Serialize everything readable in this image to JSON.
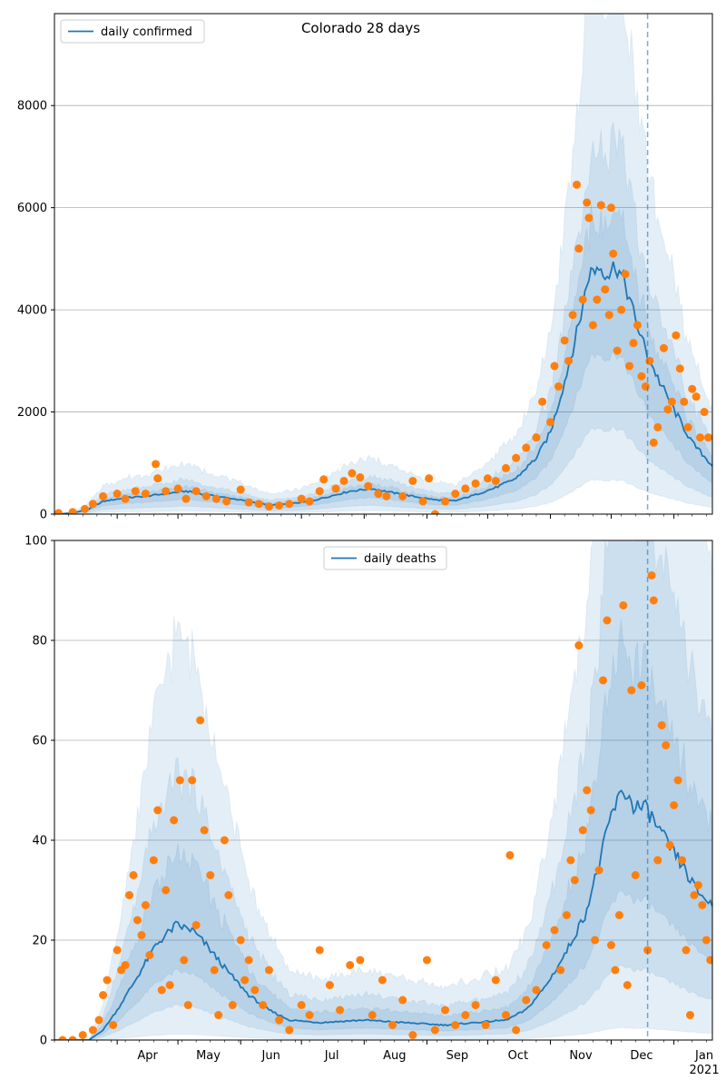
{
  "chart_data": [
    {
      "type": "line",
      "title": "Colorado 28 days",
      "legend": {
        "label": "daily confirmed",
        "placement": "top-left"
      },
      "x_start": "2020-03-01",
      "x_end": "2021-01-20",
      "ylim": [
        0,
        9800
      ],
      "yticks": [
        0,
        2000,
        4000,
        6000,
        8000
      ],
      "grid_y": true,
      "forecast_date": "2020-12-19",
      "median_line": [
        [
          "2020-03-01",
          0
        ],
        [
          "2020-03-10",
          20
        ],
        [
          "2020-03-18",
          100
        ],
        [
          "2020-03-25",
          250
        ],
        [
          "2020-04-05",
          320
        ],
        [
          "2020-04-15",
          350
        ],
        [
          "2020-04-25",
          400
        ],
        [
          "2020-05-05",
          450
        ],
        [
          "2020-05-15",
          380
        ],
        [
          "2020-05-25",
          320
        ],
        [
          "2020-06-05",
          250
        ],
        [
          "2020-06-15",
          180
        ],
        [
          "2020-06-25",
          200
        ],
        [
          "2020-07-05",
          250
        ],
        [
          "2020-07-15",
          350
        ],
        [
          "2020-07-25",
          450
        ],
        [
          "2020-08-05",
          500
        ],
        [
          "2020-08-15",
          420
        ],
        [
          "2020-08-25",
          350
        ],
        [
          "2020-09-05",
          280
        ],
        [
          "2020-09-15",
          260
        ],
        [
          "2020-09-25",
          380
        ],
        [
          "2020-10-05",
          520
        ],
        [
          "2020-10-15",
          700
        ],
        [
          "2020-10-25",
          1100
        ],
        [
          "2020-11-01",
          1600
        ],
        [
          "2020-11-08",
          2600
        ],
        [
          "2020-11-15",
          3700
        ],
        [
          "2020-11-20",
          4700
        ],
        [
          "2020-11-25",
          4850
        ],
        [
          "2020-11-30",
          4700
        ],
        [
          "2020-12-03",
          4900
        ],
        [
          "2020-12-08",
          4500
        ],
        [
          "2020-12-13",
          3800
        ],
        [
          "2020-12-19",
          3100
        ],
        [
          "2020-12-26",
          2500
        ],
        [
          "2021-01-03",
          1900
        ],
        [
          "2021-01-10",
          1400
        ],
        [
          "2021-01-20",
          950
        ]
      ],
      "bands": [
        {
          "name": "band-outer",
          "opacity": 0.12,
          "lower": 0.14,
          "upper": 2.2
        },
        {
          "name": "band-mid",
          "opacity": 0.12,
          "lower": 0.35,
          "upper": 1.5
        },
        {
          "name": "band-inner",
          "opacity": 0.12,
          "lower": 0.65,
          "upper": 1.2
        }
      ],
      "observed": [
        [
          "2020-03-03",
          20
        ],
        [
          "2020-03-10",
          40
        ],
        [
          "2020-03-16",
          100
        ],
        [
          "2020-03-20",
          200
        ],
        [
          "2020-03-25",
          350
        ],
        [
          "2020-04-01",
          400
        ],
        [
          "2020-04-05",
          300
        ],
        [
          "2020-04-10",
          450
        ],
        [
          "2020-04-15",
          400
        ],
        [
          "2020-04-20",
          980
        ],
        [
          "2020-04-21",
          700
        ],
        [
          "2020-04-25",
          450
        ],
        [
          "2020-05-01",
          500
        ],
        [
          "2020-05-05",
          300
        ],
        [
          "2020-05-10",
          450
        ],
        [
          "2020-05-15",
          350
        ],
        [
          "2020-05-20",
          300
        ],
        [
          "2020-05-25",
          250
        ],
        [
          "2020-06-01",
          480
        ],
        [
          "2020-06-05",
          230
        ],
        [
          "2020-06-10",
          200
        ],
        [
          "2020-06-15",
          150
        ],
        [
          "2020-06-20",
          170
        ],
        [
          "2020-06-25",
          200
        ],
        [
          "2020-07-01",
          300
        ],
        [
          "2020-07-05",
          250
        ],
        [
          "2020-07-10",
          450
        ],
        [
          "2020-07-12",
          680
        ],
        [
          "2020-07-18",
          500
        ],
        [
          "2020-07-22",
          650
        ],
        [
          "2020-07-26",
          800
        ],
        [
          "2020-07-30",
          720
        ],
        [
          "2020-08-03",
          550
        ],
        [
          "2020-08-08",
          400
        ],
        [
          "2020-08-12",
          350
        ],
        [
          "2020-08-20",
          350
        ],
        [
          "2020-08-25",
          650
        ],
        [
          "2020-08-30",
          250
        ],
        [
          "2020-09-02",
          700
        ],
        [
          "2020-09-05",
          0
        ],
        [
          "2020-09-10",
          250
        ],
        [
          "2020-09-15",
          400
        ],
        [
          "2020-09-20",
          500
        ],
        [
          "2020-09-25",
          600
        ],
        [
          "2020-10-01",
          700
        ],
        [
          "2020-10-05",
          650
        ],
        [
          "2020-10-10",
          900
        ],
        [
          "2020-10-15",
          1100
        ],
        [
          "2020-10-20",
          1300
        ],
        [
          "2020-10-25",
          1500
        ],
        [
          "2020-10-28",
          2200
        ],
        [
          "2020-11-01",
          1800
        ],
        [
          "2020-11-03",
          2900
        ],
        [
          "2020-11-05",
          2500
        ],
        [
          "2020-11-08",
          3400
        ],
        [
          "2020-11-10",
          3000
        ],
        [
          "2020-11-12",
          3900
        ],
        [
          "2020-11-14",
          6450
        ],
        [
          "2020-11-15",
          5200
        ],
        [
          "2020-11-17",
          4200
        ],
        [
          "2020-11-19",
          6100
        ],
        [
          "2020-11-20",
          5800
        ],
        [
          "2020-11-22",
          3700
        ],
        [
          "2020-11-24",
          4200
        ],
        [
          "2020-11-26",
          6050
        ],
        [
          "2020-11-28",
          4400
        ],
        [
          "2020-11-30",
          3900
        ],
        [
          "2020-12-01",
          6000
        ],
        [
          "2020-12-02",
          5100
        ],
        [
          "2020-12-04",
          3200
        ],
        [
          "2020-12-06",
          4000
        ],
        [
          "2020-12-08",
          4700
        ],
        [
          "2020-12-10",
          2900
        ],
        [
          "2020-12-12",
          3350
        ],
        [
          "2020-12-14",
          3700
        ],
        [
          "2020-12-16",
          2700
        ],
        [
          "2020-12-18",
          2500
        ],
        [
          "2020-12-20",
          3000
        ],
        [
          "2020-12-22",
          1400
        ],
        [
          "2020-12-24",
          1700
        ],
        [
          "2020-12-27",
          3250
        ],
        [
          "2020-12-29",
          2050
        ],
        [
          "2020-12-31",
          2200
        ],
        [
          "2021-01-02",
          3500
        ],
        [
          "2021-01-04",
          2850
        ],
        [
          "2021-01-06",
          2200
        ],
        [
          "2021-01-08",
          1700
        ],
        [
          "2021-01-10",
          2450
        ],
        [
          "2021-01-12",
          2300
        ],
        [
          "2021-01-14",
          1500
        ],
        [
          "2021-01-16",
          2000
        ],
        [
          "2021-01-18",
          1500
        ]
      ]
    },
    {
      "type": "line",
      "title": "",
      "legend": {
        "label": "daily deaths",
        "placement": "top-center"
      },
      "x_start": "2020-03-01",
      "x_end": "2021-01-20",
      "ylim": [
        0,
        100
      ],
      "yticks": [
        0,
        20,
        40,
        60,
        80,
        100
      ],
      "grid_y": true,
      "forecast_date": "2020-12-19",
      "xticks": [
        {
          "date": "2020-04-01",
          "label": "Apr"
        },
        {
          "date": "2020-05-01",
          "label": "May"
        },
        {
          "date": "2020-06-01",
          "label": "Jun"
        },
        {
          "date": "2020-07-01",
          "label": "Jul"
        },
        {
          "date": "2020-08-01",
          "label": "Aug"
        },
        {
          "date": "2020-09-01",
          "label": "Sep"
        },
        {
          "date": "2020-10-01",
          "label": "Oct"
        },
        {
          "date": "2020-11-01",
          "label": "Nov"
        },
        {
          "date": "2020-12-01",
          "label": "Dec"
        },
        {
          "date": "2021-01-01",
          "label": "Jan"
        }
      ],
      "year_label": "2021",
      "median_line": [
        [
          "2020-03-01",
          0
        ],
        [
          "2020-03-18",
          0
        ],
        [
          "2020-03-25",
          2
        ],
        [
          "2020-04-01",
          6
        ],
        [
          "2020-04-10",
          12
        ],
        [
          "2020-04-20",
          19
        ],
        [
          "2020-04-30",
          23
        ],
        [
          "2020-05-08",
          22
        ],
        [
          "2020-05-15",
          19
        ],
        [
          "2020-05-25",
          14
        ],
        [
          "2020-06-05",
          9
        ],
        [
          "2020-06-15",
          6
        ],
        [
          "2020-06-25",
          4
        ],
        [
          "2020-07-10",
          3.5
        ],
        [
          "2020-08-01",
          4
        ],
        [
          "2020-08-20",
          3.5
        ],
        [
          "2020-09-10",
          3
        ],
        [
          "2020-09-25",
          3.5
        ],
        [
          "2020-10-10",
          4
        ],
        [
          "2020-10-20",
          6
        ],
        [
          "2020-10-30",
          11
        ],
        [
          "2020-11-08",
          17
        ],
        [
          "2020-11-18",
          25
        ],
        [
          "2020-11-25",
          35
        ],
        [
          "2020-12-01",
          45
        ],
        [
          "2020-12-07",
          50
        ],
        [
          "2020-12-12",
          47
        ],
        [
          "2020-12-19",
          46
        ],
        [
          "2020-12-26",
          41
        ],
        [
          "2021-01-05",
          35
        ],
        [
          "2021-01-12",
          30
        ],
        [
          "2021-01-20",
          27
        ]
      ],
      "bands": [
        {
          "name": "band-outer",
          "opacity": 0.12,
          "lower": 0.05,
          "upper": 3.5
        },
        {
          "name": "band-mid",
          "opacity": 0.12,
          "lower": 0.3,
          "upper": 2.3
        },
        {
          "name": "band-inner",
          "opacity": 0.12,
          "lower": 0.6,
          "upper": 1.6
        }
      ],
      "observed": [
        [
          "2020-03-05",
          0
        ],
        [
          "2020-03-10",
          0
        ],
        [
          "2020-03-15",
          1
        ],
        [
          "2020-03-20",
          2
        ],
        [
          "2020-03-23",
          4
        ],
        [
          "2020-03-25",
          9
        ],
        [
          "2020-03-27",
          12
        ],
        [
          "2020-03-30",
          3
        ],
        [
          "2020-04-01",
          18
        ],
        [
          "2020-04-03",
          14
        ],
        [
          "2020-04-05",
          15
        ],
        [
          "2020-04-07",
          29
        ],
        [
          "2020-04-09",
          33
        ],
        [
          "2020-04-11",
          24
        ],
        [
          "2020-04-13",
          21
        ],
        [
          "2020-04-15",
          27
        ],
        [
          "2020-04-17",
          17
        ],
        [
          "2020-04-19",
          36
        ],
        [
          "2020-04-21",
          46
        ],
        [
          "2020-04-23",
          10
        ],
        [
          "2020-04-25",
          30
        ],
        [
          "2020-04-27",
          11
        ],
        [
          "2020-04-29",
          44
        ],
        [
          "2020-05-02",
          52
        ],
        [
          "2020-05-04",
          16
        ],
        [
          "2020-05-06",
          7
        ],
        [
          "2020-05-08",
          52
        ],
        [
          "2020-05-10",
          23
        ],
        [
          "2020-05-12",
          64
        ],
        [
          "2020-05-14",
          42
        ],
        [
          "2020-05-17",
          33
        ],
        [
          "2020-05-19",
          14
        ],
        [
          "2020-05-21",
          5
        ],
        [
          "2020-05-24",
          40
        ],
        [
          "2020-05-26",
          29
        ],
        [
          "2020-05-28",
          7
        ],
        [
          "2020-06-01",
          20
        ],
        [
          "2020-06-03",
          12
        ],
        [
          "2020-06-05",
          16
        ],
        [
          "2020-06-08",
          10
        ],
        [
          "2020-06-12",
          7
        ],
        [
          "2020-06-15",
          14
        ],
        [
          "2020-06-20",
          4
        ],
        [
          "2020-06-25",
          2
        ],
        [
          "2020-07-01",
          7
        ],
        [
          "2020-07-05",
          5
        ],
        [
          "2020-07-10",
          18
        ],
        [
          "2020-07-15",
          11
        ],
        [
          "2020-07-20",
          6
        ],
        [
          "2020-07-25",
          15
        ],
        [
          "2020-07-30",
          16
        ],
        [
          "2020-08-05",
          5
        ],
        [
          "2020-08-10",
          12
        ],
        [
          "2020-08-15",
          3
        ],
        [
          "2020-08-20",
          8
        ],
        [
          "2020-08-25",
          1
        ],
        [
          "2020-09-01",
          16
        ],
        [
          "2020-09-05",
          2
        ],
        [
          "2020-09-10",
          6
        ],
        [
          "2020-09-15",
          3
        ],
        [
          "2020-09-20",
          5
        ],
        [
          "2020-09-25",
          7
        ],
        [
          "2020-09-30",
          3
        ],
        [
          "2020-10-05",
          12
        ],
        [
          "2020-10-10",
          5
        ],
        [
          "2020-10-12",
          37
        ],
        [
          "2020-10-15",
          2
        ],
        [
          "2020-10-20",
          8
        ],
        [
          "2020-10-25",
          10
        ],
        [
          "2020-10-30",
          19
        ],
        [
          "2020-11-03",
          22
        ],
        [
          "2020-11-06",
          14
        ],
        [
          "2020-11-09",
          25
        ],
        [
          "2020-11-11",
          36
        ],
        [
          "2020-11-13",
          32
        ],
        [
          "2020-11-15",
          79
        ],
        [
          "2020-11-17",
          42
        ],
        [
          "2020-11-19",
          50
        ],
        [
          "2020-11-21",
          46
        ],
        [
          "2020-11-23",
          20
        ],
        [
          "2020-11-25",
          34
        ],
        [
          "2020-11-27",
          72
        ],
        [
          "2020-11-29",
          84
        ],
        [
          "2020-12-01",
          19
        ],
        [
          "2020-12-03",
          14
        ],
        [
          "2020-12-05",
          25
        ],
        [
          "2020-12-07",
          87
        ],
        [
          "2020-12-09",
          11
        ],
        [
          "2020-12-11",
          70
        ],
        [
          "2020-12-13",
          33
        ],
        [
          "2020-12-16",
          71
        ],
        [
          "2020-12-19",
          18
        ],
        [
          "2020-12-21",
          93
        ],
        [
          "2020-12-22",
          88
        ],
        [
          "2020-12-24",
          36
        ],
        [
          "2020-12-26",
          63
        ],
        [
          "2020-12-28",
          59
        ],
        [
          "2020-12-30",
          39
        ],
        [
          "2021-01-01",
          47
        ],
        [
          "2021-01-03",
          52
        ],
        [
          "2021-01-05",
          36
        ],
        [
          "2021-01-07",
          18
        ],
        [
          "2021-01-09",
          5
        ],
        [
          "2021-01-11",
          29
        ],
        [
          "2021-01-13",
          31
        ],
        [
          "2021-01-15",
          27
        ],
        [
          "2021-01-17",
          20
        ],
        [
          "2021-01-19",
          16
        ]
      ]
    }
  ],
  "colors": {
    "line": "#1f77b4",
    "band": "#1f77b4",
    "points": "#ff7f0e",
    "grid": "#b0b0b0",
    "forecast_line": "#1f77b4"
  }
}
